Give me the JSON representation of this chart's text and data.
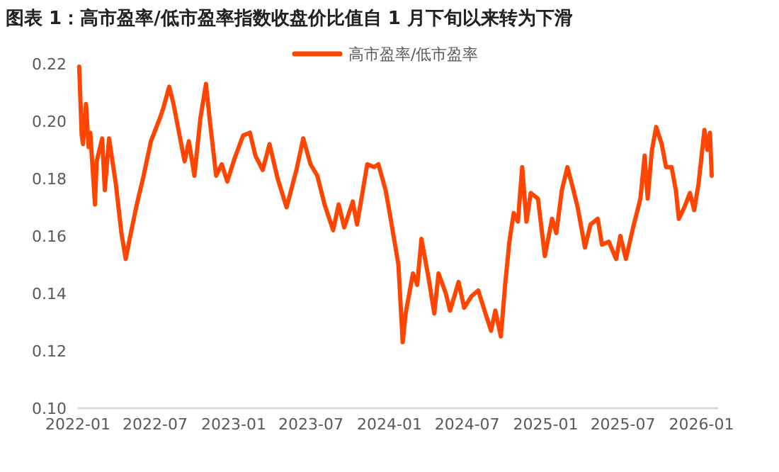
{
  "chart_data": {
    "type": "line",
    "title": "图表 1：高市盈率/低市盈率指数收盘价比值自 1 月下旬以来转为下滑",
    "xlim": [
      "2022-01-01",
      "2026-02-09"
    ],
    "xticks": [
      "2022-01",
      "2022-07",
      "2023-01",
      "2023-07",
      "2024-01",
      "2024-07",
      "2025-01",
      "2025-07",
      "2026-01"
    ],
    "ylim": [
      0.1,
      0.22
    ],
    "yticks": [
      {
        "value": 0.1,
        "label": "0.10"
      },
      0.12,
      0.14,
      0.16,
      0.18,
      {
        "value": 0.2,
        "label": "0.20"
      },
      0.22
    ],
    "grid": false,
    "legend": "top",
    "marker": "none",
    "line_style": "solid",
    "series": [
      {
        "name": "高市盈率/低市盈率",
        "color": "#ff4500",
        "x": [
          "2022-01-04",
          "2022-01-10",
          "2022-01-13",
          "2022-01-20",
          "2022-01-26",
          "2022-01-30",
          "2022-02-10",
          "2022-02-14",
          "2022-02-27",
          "2022-03-05",
          "2022-03-15",
          "2022-03-31",
          "2022-04-13",
          "2022-04-23",
          "2022-05-05",
          "2022-05-19",
          "2022-06-04",
          "2022-06-21",
          "2022-07-12",
          "2022-07-19",
          "2022-08-03",
          "2022-08-13",
          "2022-08-26",
          "2022-09-08",
          "2022-09-18",
          "2022-10-01",
          "2022-10-15",
          "2022-10-28",
          "2022-11-07",
          "2022-11-21",
          "2022-12-04",
          "2022-12-17",
          "2023-01-03",
          "2023-01-23",
          "2023-02-08",
          "2023-02-21",
          "2023-03-10",
          "2023-03-26",
          "2023-04-14",
          "2023-05-05",
          "2023-05-28",
          "2023-06-13",
          "2023-06-30",
          "2023-07-16",
          "2023-08-02",
          "2023-08-22",
          "2023-09-04",
          "2023-09-17",
          "2023-10-07",
          "2023-10-17",
          "2023-11-10",
          "2023-11-26",
          "2023-12-06",
          "2023-12-23",
          "2024-01-05",
          "2024-01-22",
          "2024-02-01",
          "2024-02-08",
          "2024-02-25",
          "2024-03-06",
          "2024-03-16",
          "2024-04-02",
          "2024-04-15",
          "2024-04-25",
          "2024-05-12",
          "2024-05-22",
          "2024-06-11",
          "2024-06-24",
          "2024-07-11",
          "2024-07-27",
          "2024-08-13",
          "2024-08-26",
          "2024-09-05",
          "2024-09-18",
          "2024-09-28",
          "2024-10-08",
          "2024-10-18",
          "2024-10-28",
          "2024-11-07",
          "2024-11-17",
          "2024-11-27",
          "2024-12-14",
          "2024-12-30",
          "2025-01-16",
          "2025-01-26",
          "2025-02-08",
          "2025-02-21",
          "2025-03-07",
          "2025-03-17",
          "2025-04-03",
          "2025-04-16",
          "2025-05-03",
          "2025-05-13",
          "2025-05-29",
          "2025-06-15",
          "2025-06-25",
          "2025-07-08",
          "2025-07-25",
          "2025-08-11",
          "2025-08-21",
          "2025-08-28",
          "2025-09-07",
          "2025-09-17",
          "2025-09-30",
          "2025-10-10",
          "2025-10-23",
          "2025-11-02",
          "2025-11-09",
          "2025-11-22",
          "2025-12-05",
          "2025-12-15",
          "2025-12-25",
          "2026-01-08",
          "2026-01-15",
          "2026-01-21",
          "2026-01-25"
        ],
        "values": [
          0.219,
          0.195,
          0.192,
          0.206,
          0.191,
          0.196,
          0.171,
          0.186,
          0.194,
          0.176,
          0.194,
          0.178,
          0.161,
          0.152,
          0.161,
          0.171,
          0.181,
          0.193,
          0.201,
          0.204,
          0.212,
          0.206,
          0.196,
          0.186,
          0.193,
          0.181,
          0.201,
          0.213,
          0.199,
          0.181,
          0.185,
          0.179,
          0.187,
          0.195,
          0.196,
          0.188,
          0.183,
          0.192,
          0.18,
          0.17,
          0.183,
          0.194,
          0.185,
          0.181,
          0.171,
          0.162,
          0.171,
          0.163,
          0.172,
          0.164,
          0.185,
          0.184,
          0.185,
          0.176,
          0.165,
          0.15,
          0.123,
          0.133,
          0.147,
          0.143,
          0.159,
          0.145,
          0.133,
          0.147,
          0.14,
          0.134,
          0.144,
          0.135,
          0.139,
          0.141,
          0.133,
          0.127,
          0.134,
          0.125,
          0.143,
          0.158,
          0.168,
          0.165,
          0.184,
          0.165,
          0.175,
          0.173,
          0.153,
          0.166,
          0.161,
          0.176,
          0.184,
          0.176,
          0.17,
          0.156,
          0.164,
          0.166,
          0.157,
          0.158,
          0.152,
          0.16,
          0.152,
          0.163,
          0.173,
          0.188,
          0.173,
          0.19,
          0.198,
          0.192,
          0.184,
          0.184,
          0.176,
          0.166,
          0.17,
          0.175,
          0.169,
          0.178,
          0.197,
          0.19,
          0.196,
          0.181
        ]
      }
    ]
  }
}
